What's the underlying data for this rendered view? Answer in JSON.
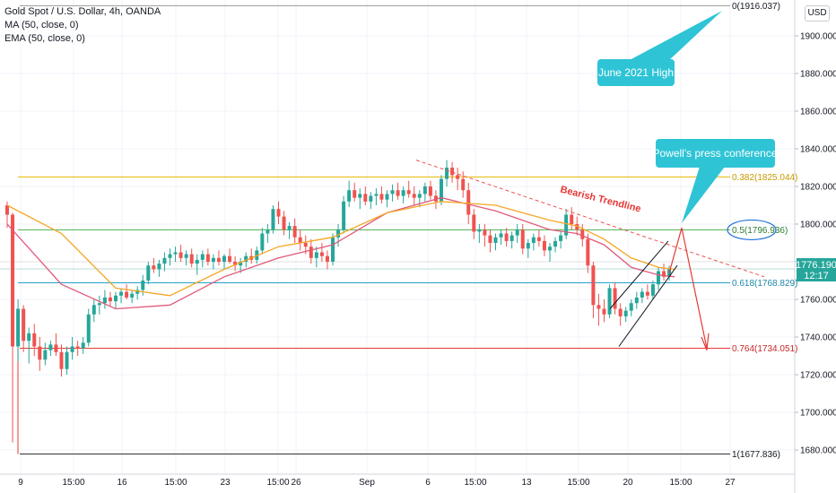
{
  "header": {
    "symbol_title": "Gold Spot / U.S. Dollar, 4h, OANDA",
    "indicator_ma": "MA (50, close, 0)",
    "indicator_ema": "EMA (50, close, 0)",
    "currency_button": "USD"
  },
  "price_box": {
    "price": "1776.190",
    "countdown": "12:17"
  },
  "colors": {
    "up": "#26a69a",
    "down": "#ef5350",
    "ma": "#e05a7a",
    "ema": "#f5a623",
    "fib_0382": "#e6b800",
    "fib_05": "#4caf50",
    "fib_0618": "#26a2c6",
    "fib_0764": "#e53935",
    "fib_1": "#333333",
    "callout": "#2ec4d6",
    "price_box": "#26a69a"
  },
  "chart_data": {
    "type": "candlestick",
    "title": "Gold Spot / U.S. Dollar, 4h, OANDA",
    "ylim": [
      1670,
      1925
    ],
    "y_ticks": [
      1680,
      1700,
      1720,
      1740,
      1760,
      1780,
      1800,
      1820,
      1840,
      1860,
      1880,
      1900
    ],
    "y_tick_labels": [
      "1680.000",
      "1700.000",
      "1720.000",
      "1740.000",
      "1760.000",
      "1780.000",
      "1800.000",
      "1820.000",
      "1840.000",
      "1860.000",
      "1880.000",
      "1900.000"
    ],
    "x_ticks": [
      "9",
      "15:00",
      "16",
      "15:00",
      "23",
      "15:00",
      "26",
      "Sep",
      "6",
      "15:00",
      "13",
      "15:00",
      "20",
      "15:00",
      "27"
    ],
    "ohlc": [
      [
        1810,
        1812,
        1798,
        1805
      ],
      [
        1805,
        1806,
        1684,
        1735
      ],
      [
        1735,
        1760,
        1727,
        1755
      ],
      [
        1755,
        1757,
        1732,
        1738
      ],
      [
        1738,
        1745,
        1726,
        1742
      ],
      [
        1742,
        1747,
        1730,
        1735
      ],
      [
        1735,
        1740,
        1722,
        1728
      ],
      [
        1728,
        1737,
        1725,
        1733
      ],
      [
        1733,
        1738,
        1730,
        1736
      ],
      [
        1736,
        1742,
        1730,
        1732
      ],
      [
        1732,
        1736,
        1719,
        1723
      ],
      [
        1723,
        1735,
        1720,
        1732
      ],
      [
        1732,
        1740,
        1728,
        1735
      ],
      [
        1735,
        1738,
        1730,
        1734
      ],
      [
        1734,
        1740,
        1731,
        1737
      ],
      [
        1737,
        1755,
        1735,
        1752
      ],
      [
        1752,
        1760,
        1748,
        1757
      ],
      [
        1757,
        1762,
        1752,
        1758
      ],
      [
        1758,
        1765,
        1755,
        1761
      ],
      [
        1761,
        1764,
        1756,
        1759
      ],
      [
        1759,
        1764,
        1755,
        1762
      ],
      [
        1762,
        1766,
        1758,
        1764
      ],
      [
        1764,
        1768,
        1760,
        1761
      ],
      [
        1761,
        1765,
        1758,
        1763
      ],
      [
        1763,
        1767,
        1760,
        1765
      ],
      [
        1765,
        1773,
        1762,
        1770
      ],
      [
        1770,
        1780,
        1768,
        1778
      ],
      [
        1778,
        1782,
        1774,
        1776
      ],
      [
        1776,
        1781,
        1772,
        1779
      ],
      [
        1779,
        1785,
        1775,
        1782
      ],
      [
        1782,
        1787,
        1778,
        1784
      ],
      [
        1784,
        1788,
        1780,
        1785
      ],
      [
        1785,
        1789,
        1780,
        1782
      ],
      [
        1782,
        1786,
        1778,
        1784
      ],
      [
        1784,
        1787,
        1777,
        1779
      ],
      [
        1779,
        1784,
        1773,
        1781
      ],
      [
        1781,
        1786,
        1777,
        1784
      ],
      [
        1784,
        1787,
        1778,
        1780
      ],
      [
        1780,
        1784,
        1776,
        1782
      ],
      [
        1782,
        1786,
        1778,
        1780
      ],
      [
        1780,
        1784,
        1776,
        1783
      ],
      [
        1783,
        1787,
        1779,
        1780
      ],
      [
        1780,
        1783,
        1775,
        1778
      ],
      [
        1778,
        1782,
        1774,
        1780
      ],
      [
        1780,
        1785,
        1777,
        1783
      ],
      [
        1783,
        1787,
        1779,
        1781
      ],
      [
        1781,
        1788,
        1779,
        1786
      ],
      [
        1786,
        1798,
        1784,
        1795
      ],
      [
        1795,
        1800,
        1790,
        1797
      ],
      [
        1797,
        1810,
        1795,
        1808
      ],
      [
        1808,
        1812,
        1800,
        1804
      ],
      [
        1804,
        1807,
        1794,
        1797
      ],
      [
        1797,
        1801,
        1792,
        1799
      ],
      [
        1799,
        1803,
        1790,
        1793
      ],
      [
        1793,
        1797,
        1786,
        1790
      ],
      [
        1790,
        1794,
        1784,
        1788
      ],
      [
        1788,
        1792,
        1779,
        1782
      ],
      [
        1782,
        1788,
        1777,
        1785
      ],
      [
        1785,
        1790,
        1780,
        1783
      ],
      [
        1783,
        1786,
        1776,
        1780
      ],
      [
        1780,
        1795,
        1778,
        1793
      ],
      [
        1793,
        1800,
        1788,
        1797
      ],
      [
        1797,
        1815,
        1795,
        1812
      ],
      [
        1812,
        1823,
        1809,
        1818
      ],
      [
        1818,
        1822,
        1812,
        1814
      ],
      [
        1814,
        1819,
        1808,
        1816
      ],
      [
        1816,
        1820,
        1810,
        1812
      ],
      [
        1812,
        1817,
        1808,
        1815
      ],
      [
        1815,
        1819,
        1810,
        1816
      ],
      [
        1816,
        1820,
        1811,
        1813
      ],
      [
        1813,
        1818,
        1809,
        1816
      ],
      [
        1816,
        1821,
        1812,
        1818
      ],
      [
        1818,
        1822,
        1813,
        1815
      ],
      [
        1815,
        1820,
        1811,
        1818
      ],
      [
        1818,
        1823,
        1814,
        1816
      ],
      [
        1816,
        1820,
        1810,
        1814
      ],
      [
        1814,
        1818,
        1809,
        1816
      ],
      [
        1816,
        1822,
        1812,
        1820
      ],
      [
        1820,
        1823,
        1813,
        1815
      ],
      [
        1815,
        1818,
        1808,
        1812
      ],
      [
        1812,
        1826,
        1810,
        1824
      ],
      [
        1824,
        1834,
        1820,
        1830
      ],
      [
        1830,
        1833,
        1822,
        1826
      ],
      [
        1826,
        1830,
        1818,
        1824
      ],
      [
        1824,
        1828,
        1814,
        1818
      ],
      [
        1818,
        1822,
        1800,
        1805
      ],
      [
        1805,
        1808,
        1792,
        1796
      ],
      [
        1796,
        1800,
        1790,
        1797
      ],
      [
        1797,
        1800,
        1788,
        1794
      ],
      [
        1794,
        1797,
        1785,
        1790
      ],
      [
        1790,
        1795,
        1786,
        1793
      ],
      [
        1793,
        1797,
        1789,
        1795
      ],
      [
        1795,
        1798,
        1788,
        1791
      ],
      [
        1791,
        1796,
        1787,
        1794
      ],
      [
        1794,
        1800,
        1790,
        1797
      ],
      [
        1797,
        1800,
        1784,
        1787
      ],
      [
        1787,
        1792,
        1782,
        1790
      ],
      [
        1790,
        1795,
        1786,
        1793
      ],
      [
        1793,
        1797,
        1788,
        1791
      ],
      [
        1791,
        1794,
        1783,
        1786
      ],
      [
        1786,
        1790,
        1780,
        1788
      ],
      [
        1788,
        1793,
        1785,
        1791
      ],
      [
        1791,
        1796,
        1787,
        1794
      ],
      [
        1794,
        1808,
        1792,
        1805
      ],
      [
        1805,
        1809,
        1797,
        1800
      ],
      [
        1800,
        1804,
        1794,
        1797
      ],
      [
        1797,
        1800,
        1788,
        1792
      ],
      [
        1792,
        1795,
        1774,
        1778
      ],
      [
        1778,
        1780,
        1750,
        1757
      ],
      [
        1757,
        1763,
        1746,
        1755
      ],
      [
        1755,
        1760,
        1748,
        1752
      ],
      [
        1752,
        1768,
        1750,
        1766
      ],
      [
        1766,
        1769,
        1752,
        1755
      ],
      [
        1755,
        1758,
        1746,
        1751
      ],
      [
        1751,
        1756,
        1748,
        1754
      ],
      [
        1754,
        1760,
        1751,
        1758
      ],
      [
        1758,
        1764,
        1755,
        1761
      ],
      [
        1761,
        1766,
        1758,
        1764
      ],
      [
        1764,
        1768,
        1760,
        1762
      ],
      [
        1762,
        1770,
        1760,
        1768
      ],
      [
        1768,
        1777,
        1765,
        1775
      ],
      [
        1775,
        1779,
        1770,
        1772
      ],
      [
        1772,
        1778,
        1770,
        1776
      ]
    ],
    "ma_50": [
      [
        0,
        1800
      ],
      [
        10,
        1768
      ],
      [
        20,
        1755
      ],
      [
        30,
        1757
      ],
      [
        40,
        1772
      ],
      [
        50,
        1782
      ],
      [
        60,
        1789
      ],
      [
        70,
        1806
      ],
      [
        80,
        1814
      ],
      [
        90,
        1807
      ],
      [
        100,
        1797
      ],
      [
        105,
        1795
      ],
      [
        110,
        1789
      ],
      [
        115,
        1777
      ],
      [
        120,
        1773
      ],
      [
        123,
        1772
      ]
    ],
    "ema_50": [
      [
        0,
        1810
      ],
      [
        10,
        1795
      ],
      [
        20,
        1766
      ],
      [
        30,
        1762
      ],
      [
        40,
        1776
      ],
      [
        50,
        1788
      ],
      [
        60,
        1793
      ],
      [
        70,
        1806
      ],
      [
        80,
        1812
      ],
      [
        90,
        1810
      ],
      [
        100,
        1802
      ],
      [
        105,
        1799
      ],
      [
        110,
        1792
      ],
      [
        115,
        1782
      ],
      [
        120,
        1777
      ],
      [
        123,
        1776
      ]
    ],
    "fib_levels": [
      {
        "ratio": "0",
        "value": 1916.037,
        "label": "0(1916.037)"
      },
      {
        "ratio": "0.382",
        "value": 1825.044,
        "label": "0.382(1825.044)"
      },
      {
        "ratio": "0.5",
        "value": 1796.936,
        "label": "0.5(1796.936)"
      },
      {
        "ratio": "0.618",
        "value": 1768.829,
        "label": "0.618(1768.829)"
      },
      {
        "ratio": "0.764",
        "value": 1734.051,
        "label": "0.764(1734.051)"
      },
      {
        "ratio": "1",
        "value": 1677.836,
        "label": "1(1677.836)"
      }
    ],
    "annotations": {
      "june_high": "June 2021 High",
      "powell": "Powell's press conference",
      "trendline": "Bearish Trendline"
    }
  }
}
